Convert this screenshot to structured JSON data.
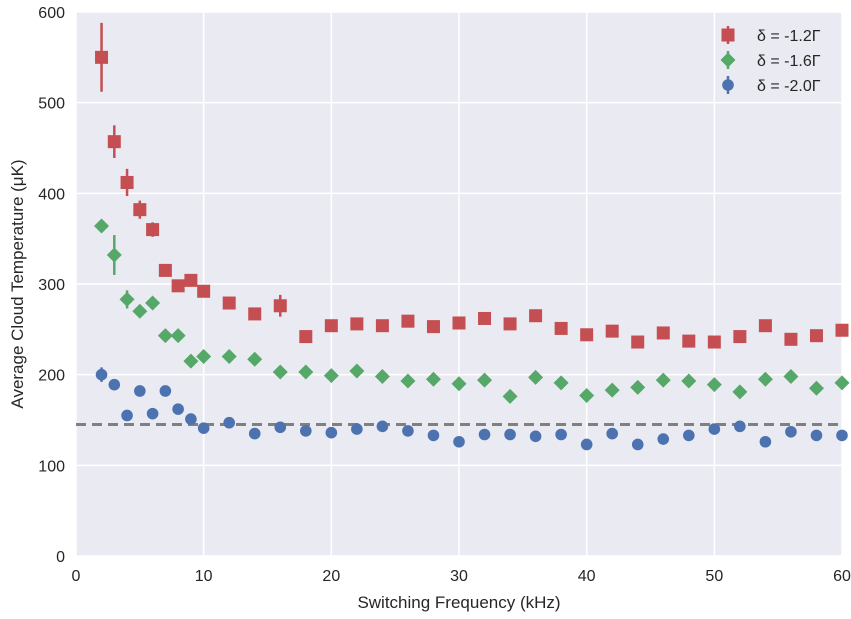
{
  "chart_data": {
    "type": "scatter",
    "xlabel": "Switching Frequency (kHz)",
    "ylabel": "Average Cloud Temperature (μK)",
    "xlim": [
      0,
      60
    ],
    "ylim": [
      0,
      600
    ],
    "x_ticks": [
      0,
      10,
      20,
      30,
      40,
      50,
      60
    ],
    "y_ticks": [
      0,
      100,
      200,
      300,
      400,
      500,
      600
    ],
    "grid": true,
    "background_color": "#EAEAF2",
    "legend_position": "top-right",
    "reference_line": {
      "y": 145,
      "style": "dashed",
      "color": "#808080"
    },
    "series": [
      {
        "name": "δ = -1.2Γ",
        "marker": "square",
        "color": "#C44E52",
        "x": [
          2,
          3,
          4,
          5,
          6,
          7,
          8,
          9,
          10,
          12,
          14,
          16,
          18,
          20,
          22,
          24,
          26,
          28,
          30,
          32,
          34,
          36,
          38,
          40,
          42,
          44,
          46,
          48,
          50,
          52,
          54,
          56,
          58,
          60
        ],
        "y": [
          550,
          457,
          412,
          382,
          360,
          315,
          298,
          304,
          292,
          279,
          267,
          276,
          242,
          254,
          256,
          254,
          259,
          253,
          257,
          262,
          256,
          265,
          251,
          244,
          248,
          236,
          246,
          237,
          236,
          242,
          254,
          239,
          243,
          249
        ],
        "err": [
          38,
          18,
          15,
          10,
          8,
          0,
          0,
          0,
          0,
          0,
          0,
          12,
          0,
          0,
          0,
          0,
          0,
          0,
          0,
          0,
          0,
          0,
          0,
          0,
          0,
          0,
          0,
          0,
          0,
          0,
          0,
          0,
          0,
          0
        ]
      },
      {
        "name": "δ = -1.6Γ",
        "marker": "diamond",
        "color": "#55A868",
        "x": [
          2,
          3,
          4,
          5,
          6,
          7,
          8,
          9,
          10,
          12,
          14,
          16,
          18,
          20,
          22,
          24,
          26,
          28,
          30,
          32,
          34,
          36,
          38,
          40,
          42,
          44,
          46,
          48,
          50,
          52,
          54,
          56,
          58,
          60
        ],
        "y": [
          364,
          332,
          283,
          270,
          279,
          243,
          243,
          215,
          220,
          220,
          217,
          203,
          203,
          199,
          204,
          198,
          193,
          195,
          190,
          194,
          176,
          197,
          191,
          177,
          183,
          186,
          194,
          193,
          189,
          181,
          195,
          198,
          185,
          191
        ],
        "err": [
          0,
          22,
          10,
          0,
          0,
          0,
          0,
          0,
          0,
          0,
          0,
          0,
          0,
          0,
          0,
          0,
          0,
          0,
          0,
          0,
          0,
          0,
          0,
          0,
          0,
          0,
          0,
          0,
          0,
          0,
          0,
          0,
          0,
          0
        ]
      },
      {
        "name": "δ = -2.0Γ",
        "marker": "circle",
        "color": "#4C72B0",
        "x": [
          2,
          3,
          4,
          5,
          6,
          7,
          8,
          9,
          10,
          12,
          14,
          16,
          18,
          20,
          22,
          24,
          26,
          28,
          30,
          32,
          34,
          36,
          38,
          40,
          42,
          44,
          46,
          48,
          50,
          52,
          54,
          56,
          58,
          60
        ],
        "y": [
          200,
          189,
          155,
          182,
          157,
          182,
          162,
          151,
          141,
          147,
          135,
          142,
          138,
          136,
          140,
          143,
          138,
          133,
          126,
          134,
          134,
          132,
          134,
          123,
          135,
          123,
          129,
          133,
          140,
          143,
          126,
          137,
          133,
          133
        ],
        "err": [
          8,
          0,
          0,
          0,
          0,
          0,
          0,
          0,
          0,
          0,
          0,
          0,
          0,
          0,
          0,
          0,
          0,
          0,
          0,
          0,
          0,
          0,
          0,
          0,
          0,
          0,
          0,
          0,
          0,
          0,
          0,
          0,
          0,
          0
        ]
      }
    ]
  }
}
